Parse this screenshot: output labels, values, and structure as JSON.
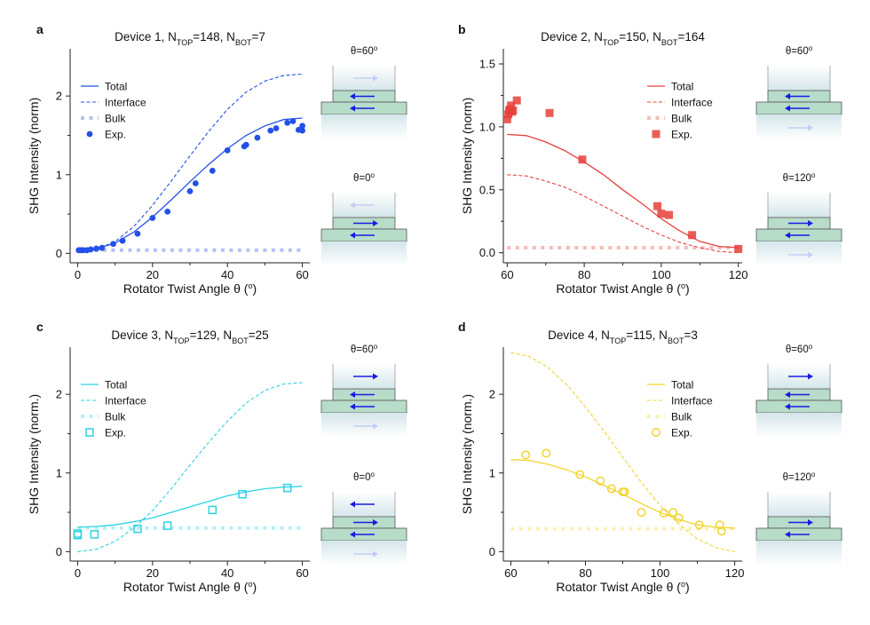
{
  "figure": {
    "axis_xlabel": "Rotator Twist Angle θ (",
    "axis_xlabel_unit": "o",
    "axis_xlabel_close": ")",
    "title_prefix": "Device ",
    "n_label": "N",
    "top_sub": "TOP",
    "bot_sub": "BOT",
    "deg_symbol": "o",
    "colors": {
      "inset_layer": "#b7dcc9",
      "inset_layer_dark": "#9fcab3",
      "arrow_strong": "#1a1ae6",
      "arrow_faint": "#c6ccf4"
    }
  },
  "chart_data": [
    {
      "panel_letter": "a",
      "type": "line",
      "title": "Device 1, N_TOP=148, N_BOT=7",
      "device": "1",
      "n_top": "148",
      "n_bot": "7",
      "ylabel": "SHG Intensity (norm)",
      "xlabel": "Rotator Twist Angle θ (°)",
      "xlim": [
        -2,
        62
      ],
      "ylim": [
        -0.12,
        2.6
      ],
      "xticks": [
        0,
        20,
        40,
        60
      ],
      "yticks": [
        0,
        1,
        2
      ],
      "color": "#2350e8",
      "marker": "dot",
      "legend": [
        "Total",
        "Interface",
        "Bulk",
        "Exp."
      ],
      "series": [
        {
          "name": "Total",
          "style": "solid",
          "x": [
            0,
            5,
            10,
            15,
            20,
            25,
            30,
            35,
            40,
            45,
            50,
            55,
            60
          ],
          "values": [
            0.04,
            0.06,
            0.13,
            0.27,
            0.46,
            0.68,
            0.91,
            1.13,
            1.33,
            1.5,
            1.62,
            1.7,
            1.72
          ]
        },
        {
          "name": "Interface",
          "style": "dashed",
          "x": [
            0,
            5,
            10,
            15,
            20,
            25,
            30,
            35,
            40,
            45,
            50,
            55,
            60
          ],
          "values": [
            0.02,
            0.05,
            0.15,
            0.34,
            0.61,
            0.92,
            1.24,
            1.55,
            1.83,
            2.05,
            2.19,
            2.26,
            2.28
          ]
        },
        {
          "name": "Bulk",
          "style": "dotted",
          "x": [
            0,
            60
          ],
          "values": [
            0.04,
            0.04
          ]
        },
        {
          "name": "Exp.",
          "style": "markers",
          "x": [
            0.3,
            0.8,
            1.5,
            2.5,
            3.5,
            5,
            6.5,
            9.5,
            12,
            16,
            20,
            24,
            30,
            31.5,
            36,
            40,
            44.5,
            45,
            48,
            51.5,
            53,
            56,
            57.5,
            59,
            60,
            60
          ],
          "values": [
            0.04,
            0.04,
            0.04,
            0.04,
            0.05,
            0.06,
            0.07,
            0.12,
            0.16,
            0.25,
            0.45,
            0.53,
            0.79,
            0.89,
            1.05,
            1.31,
            1.36,
            1.38,
            1.47,
            1.56,
            1.59,
            1.66,
            1.68,
            1.57,
            1.56,
            1.62
          ]
        }
      ],
      "inset": {
        "upper_label": "θ=60°",
        "lower_label": "θ=0°",
        "upper_arrows": [
          [
            "right",
            "faint"
          ],
          [
            "left",
            "strong"
          ],
          [
            "left",
            "strong"
          ],
          null
        ],
        "lower_arrows": [
          [
            "left",
            "faint"
          ],
          [
            "right",
            "strong"
          ],
          [
            "left",
            "strong"
          ],
          null
        ]
      }
    },
    {
      "panel_letter": "b",
      "type": "line",
      "title": "Device 2, N_TOP=150, N_BOT=164",
      "device": "2",
      "n_top": "150",
      "n_bot": "164",
      "ylabel": "SHG Intensity (norm)",
      "xlabel": "Rotator Twist Angle θ (°)",
      "xlim": [
        59,
        121
      ],
      "ylim": [
        -0.08,
        1.62
      ],
      "xticks": [
        60,
        80,
        100,
        120
      ],
      "yticks": [
        0.0,
        0.5,
        1.0,
        1.5
      ],
      "ytick_labels": [
        "0.0",
        "0.5",
        "1.0",
        "1.5"
      ],
      "color": "#e8403a",
      "marker": "square-filled",
      "legend": [
        "Total",
        "Interface",
        "Bulk",
        "Exp."
      ],
      "series": [
        {
          "name": "Total",
          "style": "solid",
          "x": [
            60,
            65,
            70,
            75,
            80,
            85,
            90,
            95,
            100,
            105,
            110,
            115,
            120
          ],
          "values": [
            0.94,
            0.93,
            0.88,
            0.81,
            0.72,
            0.62,
            0.5,
            0.39,
            0.27,
            0.17,
            0.09,
            0.05,
            0.04
          ]
        },
        {
          "name": "Interface",
          "style": "dashed",
          "x": [
            60,
            65,
            70,
            75,
            80,
            85,
            90,
            95,
            100,
            105,
            110,
            115,
            120
          ],
          "values": [
            0.62,
            0.61,
            0.57,
            0.52,
            0.45,
            0.37,
            0.29,
            0.21,
            0.14,
            0.08,
            0.04,
            0.01,
            0.0
          ]
        },
        {
          "name": "Bulk",
          "style": "dotted",
          "x": [
            60,
            120
          ],
          "values": [
            0.04,
            0.04
          ]
        },
        {
          "name": "Exp.",
          "style": "markers",
          "x": [
            60,
            60.3,
            60.5,
            60.8,
            61,
            61.2,
            61.5,
            62.5,
            71,
            79.5,
            99,
            100,
            102,
            108,
            120
          ],
          "values": [
            1.06,
            1.1,
            1.13,
            1.14,
            1.17,
            1.12,
            1.13,
            1.21,
            1.11,
            0.74,
            0.37,
            0.31,
            0.3,
            0.14,
            0.03
          ]
        }
      ],
      "inset": {
        "upper_label": "θ=60°",
        "lower_label": "θ=120°",
        "upper_arrows": [
          null,
          [
            "left",
            "strong"
          ],
          [
            "left",
            "strong"
          ],
          [
            "right",
            "faint"
          ]
        ],
        "lower_arrows": [
          null,
          [
            "right",
            "strong"
          ],
          [
            "left",
            "strong"
          ],
          [
            "right",
            "faint"
          ]
        ]
      }
    },
    {
      "panel_letter": "c",
      "type": "line",
      "title": "Device 3, N_TOP=129, N_BOT=25",
      "device": "3",
      "n_top": "129",
      "n_bot": "25",
      "ylabel": "SHG Intensity (norm.)",
      "xlabel": "Rotator Twist Angle θ (°)",
      "xlim": [
        -2,
        62
      ],
      "ylim": [
        -0.12,
        2.6
      ],
      "xticks": [
        0,
        20,
        40,
        60
      ],
      "yticks": [
        0,
        1,
        2
      ],
      "color": "#2bd3e3",
      "marker": "square-open",
      "legend": [
        "Total",
        "Interface",
        "Bulk",
        "Exp."
      ],
      "series": [
        {
          "name": "Total",
          "style": "solid",
          "x": [
            0,
            5,
            10,
            15,
            20,
            25,
            30,
            35,
            40,
            45,
            50,
            55,
            60
          ],
          "values": [
            0.31,
            0.32,
            0.34,
            0.38,
            0.43,
            0.5,
            0.57,
            0.64,
            0.71,
            0.76,
            0.8,
            0.82,
            0.83
          ]
        },
        {
          "name": "Interface",
          "style": "dashed",
          "x": [
            0,
            5,
            10,
            15,
            20,
            25,
            30,
            35,
            40,
            45,
            50,
            55,
            60
          ],
          "values": [
            0.0,
            0.03,
            0.13,
            0.3,
            0.52,
            0.8,
            1.1,
            1.39,
            1.66,
            1.89,
            2.05,
            2.13,
            2.15
          ]
        },
        {
          "name": "Bulk",
          "style": "dotted",
          "x": [
            0,
            60
          ],
          "values": [
            0.3,
            0.3
          ]
        },
        {
          "name": "Exp.",
          "style": "markers",
          "x": [
            0,
            0,
            4.5,
            16,
            24,
            36,
            44,
            56
          ],
          "values": [
            0.23,
            0.21,
            0.22,
            0.29,
            0.33,
            0.53,
            0.73,
            0.81
          ]
        }
      ],
      "inset": {
        "upper_label": "θ=60°",
        "lower_label": "θ=0°",
        "upper_arrows": [
          [
            "right",
            "strong"
          ],
          [
            "left",
            "strong"
          ],
          [
            "left",
            "strong"
          ],
          [
            "right",
            "faint"
          ]
        ],
        "lower_arrows": [
          [
            "left",
            "strong"
          ],
          [
            "right",
            "strong"
          ],
          [
            "left",
            "strong"
          ],
          [
            "right",
            "faint"
          ]
        ]
      }
    },
    {
      "panel_letter": "d",
      "type": "line",
      "title": "Device 4, N_TOP=115, N_BOT=3",
      "device": "4",
      "n_top": "115",
      "n_bot": "3",
      "ylabel": "SHG Intensity (norm.)",
      "xlabel": "Rotator Twist Angle θ (°)",
      "xlim": [
        58,
        122
      ],
      "ylim": [
        -0.12,
        2.6
      ],
      "xticks": [
        60,
        80,
        100,
        120
      ],
      "yticks": [
        0,
        1,
        2
      ],
      "color": "#f2d42e",
      "marker": "circle-open",
      "legend": [
        "Total",
        "Interface",
        "Bulk",
        "Exp."
      ],
      "series": [
        {
          "name": "Total",
          "style": "solid",
          "x": [
            60,
            65,
            70,
            75,
            80,
            85,
            90,
            95,
            100,
            105,
            110,
            115,
            120
          ],
          "values": [
            1.17,
            1.16,
            1.11,
            1.04,
            0.95,
            0.84,
            0.73,
            0.61,
            0.5,
            0.41,
            0.34,
            0.31,
            0.3
          ]
        },
        {
          "name": "Interface",
          "style": "dashed",
          "x": [
            60,
            65,
            70,
            75,
            80,
            85,
            90,
            95,
            100,
            105,
            110,
            115,
            120
          ],
          "values": [
            2.53,
            2.48,
            2.34,
            2.12,
            1.84,
            1.53,
            1.2,
            0.88,
            0.59,
            0.35,
            0.16,
            0.05,
            0.0
          ]
        },
        {
          "name": "Bulk",
          "style": "dotted",
          "x": [
            60,
            120
          ],
          "values": [
            0.29,
            0.29
          ]
        },
        {
          "name": "Exp.",
          "style": "markers",
          "x": [
            64,
            69.5,
            78.5,
            84,
            87,
            90,
            90.5,
            95,
            101,
            103.5,
            105,
            110.5,
            116,
            116.5
          ],
          "values": [
            1.23,
            1.25,
            0.98,
            0.9,
            0.8,
            0.76,
            0.76,
            0.5,
            0.49,
            0.5,
            0.43,
            0.34,
            0.34,
            0.26
          ]
        }
      ],
      "inset": {
        "upper_label": "θ=60°",
        "lower_label": "θ=120°",
        "upper_arrows": [
          [
            "right",
            "strong"
          ],
          [
            "left",
            "strong"
          ],
          [
            "left",
            "strong"
          ],
          null
        ],
        "lower_arrows": [
          null,
          [
            "right",
            "strong"
          ],
          [
            "left",
            "strong"
          ],
          null
        ]
      }
    }
  ]
}
